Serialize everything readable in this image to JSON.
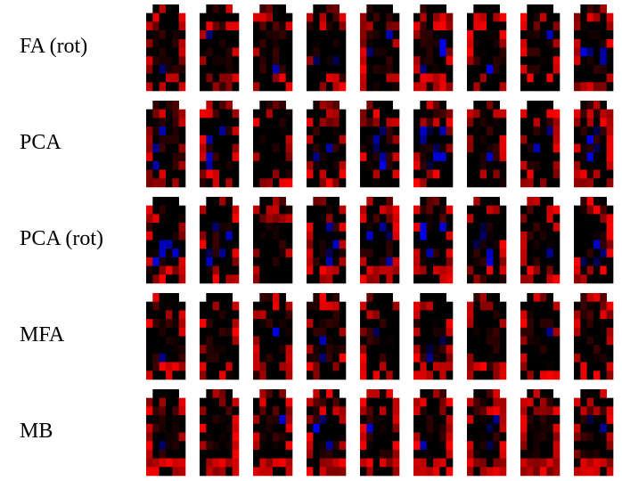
{
  "rows": [
    {
      "label": "FA (rot)"
    },
    {
      "label": "PCA"
    },
    {
      "label": "PCA (rot)"
    },
    {
      "label": "MFA"
    },
    {
      "label": "MB"
    }
  ]
}
